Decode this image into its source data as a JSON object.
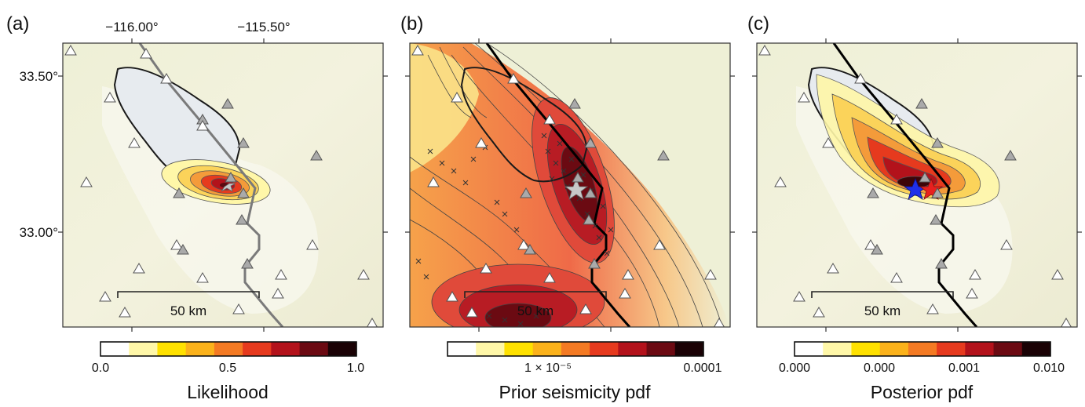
{
  "panels": [
    {
      "id": "a",
      "label": "(a)",
      "top_ticks": [
        "−116.00°",
        "−115.50°"
      ],
      "left_ticks": [
        "33.50°",
        "33.00°"
      ],
      "scale_bar": "50 km",
      "colorbar_title": "Likelihood",
      "colorbar_ticks": [
        "0.0",
        "0.5",
        "1.0"
      ],
      "colors": [
        "#ffffff",
        "#fff7a8",
        "#ffe100",
        "#fbb21b",
        "#f47a23",
        "#e63a1e",
        "#b3121b",
        "#6b0a12",
        "#1a0205"
      ]
    },
    {
      "id": "b",
      "label": "(b)",
      "scale_bar": "50 km",
      "colorbar_title": "Prior seismicity pdf",
      "colorbar_ticks": [
        "1 × 10⁻⁵",
        "0.0001"
      ],
      "colors": [
        "#ffffff",
        "#fff7a8",
        "#ffe100",
        "#fbb21b",
        "#f47a23",
        "#e63a1e",
        "#b3121b",
        "#6b0a12",
        "#1a0205"
      ]
    },
    {
      "id": "c",
      "label": "(c)",
      "scale_bar": "50 km",
      "colorbar_title": "Posterior pdf",
      "colorbar_ticks": [
        "0.000",
        "0.000",
        "0.001",
        "0.010"
      ],
      "colors": [
        "#ffffff",
        "#fff7a8",
        "#ffe100",
        "#fbb21b",
        "#f47a23",
        "#e63a1e",
        "#b3121b",
        "#6b0a12",
        "#1a0205"
      ]
    }
  ]
}
